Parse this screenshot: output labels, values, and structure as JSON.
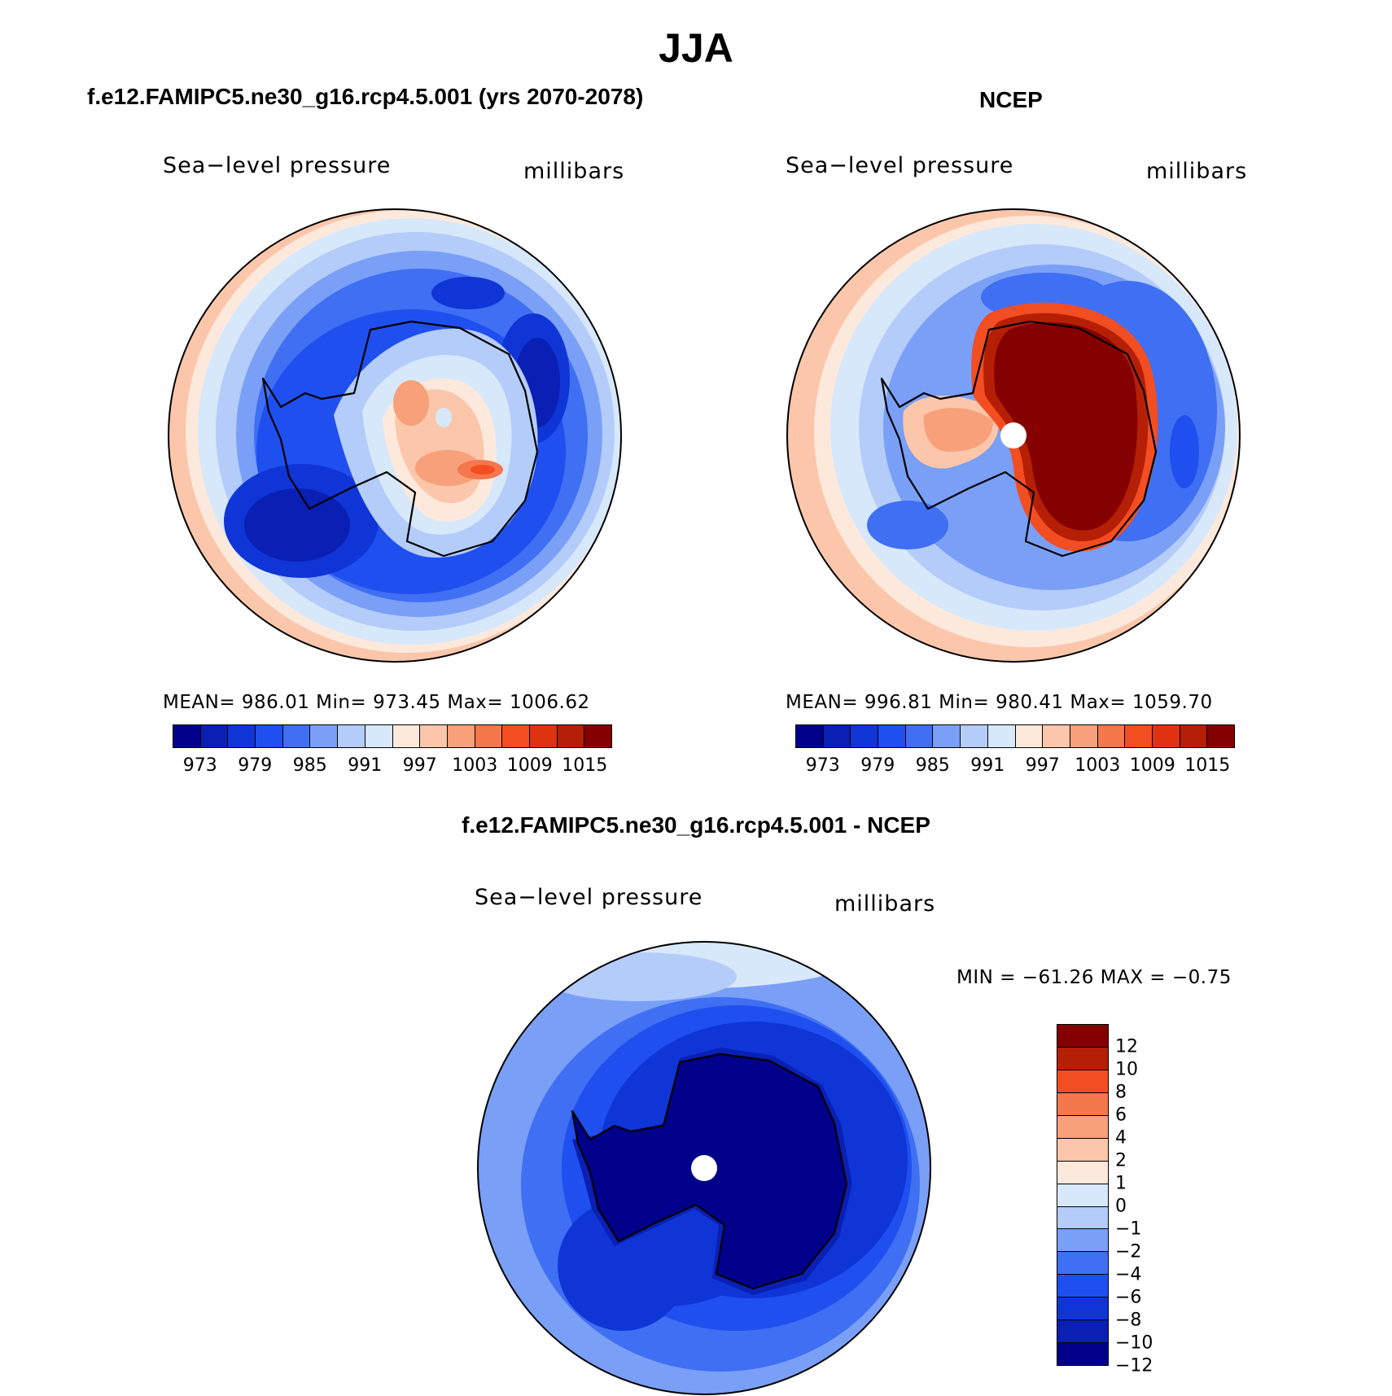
{
  "title": "JJA",
  "panels": [
    {
      "case_title": "f.e12.FAMIPC5.ne30_g16.rcp4.5.001 (yrs 2070-2078)",
      "label_left": "Sea−level pressure",
      "label_right": "millibars",
      "stats": "MEAN= 986.01    Min= 973.45    Max= 1006.62"
    },
    {
      "case_title": "NCEP",
      "label_left": "Sea−level pressure",
      "label_right": "millibars",
      "stats": "MEAN= 996.81    Min= 980.41    Max= 1059.70"
    },
    {
      "case_title": "f.e12.FAMIPC5.ne30_g16.rcp4.5.001 - NCEP",
      "label_left": "Sea−level pressure",
      "label_right": "millibars",
      "stats": "MIN = −61.26  MAX =  −0.75"
    }
  ],
  "colorbar_slp": {
    "ticks": [
      "973",
      "979",
      "985",
      "991",
      "997",
      "1003",
      "1009",
      "1015"
    ],
    "colors": [
      "#00008b",
      "#0a1fb4",
      "#0f35d6",
      "#1f4fef",
      "#3f6ff2",
      "#7a9ff7",
      "#b4ccfa",
      "#d8e8fb",
      "#fde9dc",
      "#fbc6aa",
      "#f8a07a",
      "#f5774c",
      "#f34d22",
      "#de3210",
      "#b51f06",
      "#850000"
    ]
  },
  "colorbar_diff": {
    "ticks": [
      "12",
      "10",
      "8",
      "6",
      "4",
      "2",
      "1",
      "0",
      "−1",
      "−2",
      "−4",
      "−6",
      "−8",
      "−10",
      "−12"
    ],
    "colors": [
      "#850000",
      "#b51f06",
      "#f34d22",
      "#f5774c",
      "#f8a07a",
      "#fbc6aa",
      "#fde9dc",
      "#d8e8fb",
      "#b4ccfa",
      "#7a9ff7",
      "#3f6ff2",
      "#1f4fef",
      "#0f35d6",
      "#0a1fb4",
      "#00008b"
    ]
  }
}
